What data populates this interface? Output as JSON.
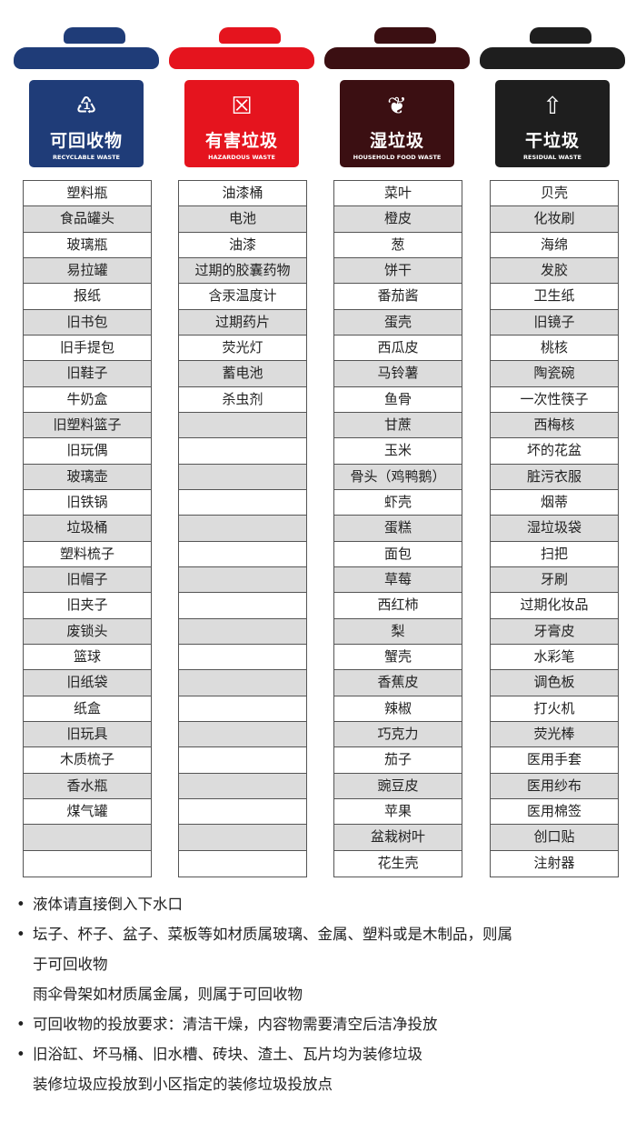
{
  "bins": [
    {
      "zh": "可回收物",
      "en": "RECYCLABLE WASTE",
      "icon": "recycle-icon",
      "glyph": "♳",
      "color": "#1f3c78"
    },
    {
      "zh": "有害垃圾",
      "en": "HAZARDOUS WASTE",
      "icon": "hazardous-battery-icon",
      "glyph": "☒",
      "color": "#e5141e"
    },
    {
      "zh": "湿垃圾",
      "en": "HOUSEHOLD FOOD WASTE",
      "icon": "food-waste-icon",
      "glyph": "❦",
      "color": "#3b0f12"
    },
    {
      "zh": "干垃圾",
      "en": "RESIDUAL WASTE",
      "icon": "residual-arrow-icon",
      "glyph": "⇧",
      "color": "#1e1e1e"
    }
  ],
  "columns": [
    [
      "塑料瓶",
      "食品罐头",
      "玻璃瓶",
      "易拉罐",
      "报纸",
      "旧书包",
      "旧手提包",
      "旧鞋子",
      "牛奶盒",
      "旧塑料篮子",
      "旧玩偶",
      "玻璃壶",
      "旧铁锅",
      "垃圾桶",
      "塑料梳子",
      "旧帽子",
      "旧夹子",
      "废锁头",
      "篮球",
      "旧纸袋",
      "纸盒",
      "旧玩具",
      "木质梳子",
      "香水瓶",
      "煤气罐",
      "",
      ""
    ],
    [
      "油漆桶",
      "电池",
      "油漆",
      "过期的胶囊药物",
      "含汞温度计",
      "过期药片",
      "荧光灯",
      "蓄电池",
      "杀虫剂",
      "",
      "",
      "",
      "",
      "",
      "",
      "",
      "",
      "",
      "",
      "",
      "",
      "",
      "",
      "",
      "",
      "",
      ""
    ],
    [
      "菜叶",
      "橙皮",
      "葱",
      "饼干",
      "番茄酱",
      "蛋壳",
      "西瓜皮",
      "马铃薯",
      "鱼骨",
      "甘蔗",
      "玉米",
      "骨头（鸡鸭鹅）",
      "虾壳",
      "蛋糕",
      "面包",
      "草莓",
      "西红柿",
      "梨",
      "蟹壳",
      "香蕉皮",
      "辣椒",
      "巧克力",
      "茄子",
      "豌豆皮",
      "苹果",
      "盆栽树叶",
      "花生壳"
    ],
    [
      "贝壳",
      "化妆刷",
      "海绵",
      "发胶",
      "卫生纸",
      "旧镜子",
      "桃核",
      "陶瓷碗",
      "一次性筷子",
      "西梅核",
      "坏的花盆",
      "脏污衣服",
      "烟蒂",
      "湿垃圾袋",
      "扫把",
      "牙刷",
      "过期化妆品",
      "牙膏皮",
      "水彩笔",
      "调色板",
      "打火机",
      "荧光棒",
      "医用手套",
      "医用纱布",
      "医用棉签",
      "创口贴",
      "注射器"
    ]
  ],
  "notes": [
    {
      "bullet": "•",
      "lines": [
        "液体请直接倒入下水口"
      ]
    },
    {
      "bullet": "•",
      "lines": [
        "坛子、杯子、盆子、菜板等如材质属玻璃、金属、塑料或是木制品，则属",
        "于可回收物",
        "雨伞骨架如材质属金属，则属于可回收物"
      ]
    },
    {
      "bullet": "•",
      "lines": [
        "可回收物的投放要求：清洁干燥，内容物需要清空后洁净投放"
      ]
    },
    {
      "bullet": "•",
      "lines": [
        "旧浴缸、坏马桶、旧水槽、砖块、渣土、瓦片均为装修垃圾",
        "装修垃圾应投放到小区指定的装修垃圾投放点"
      ]
    }
  ]
}
